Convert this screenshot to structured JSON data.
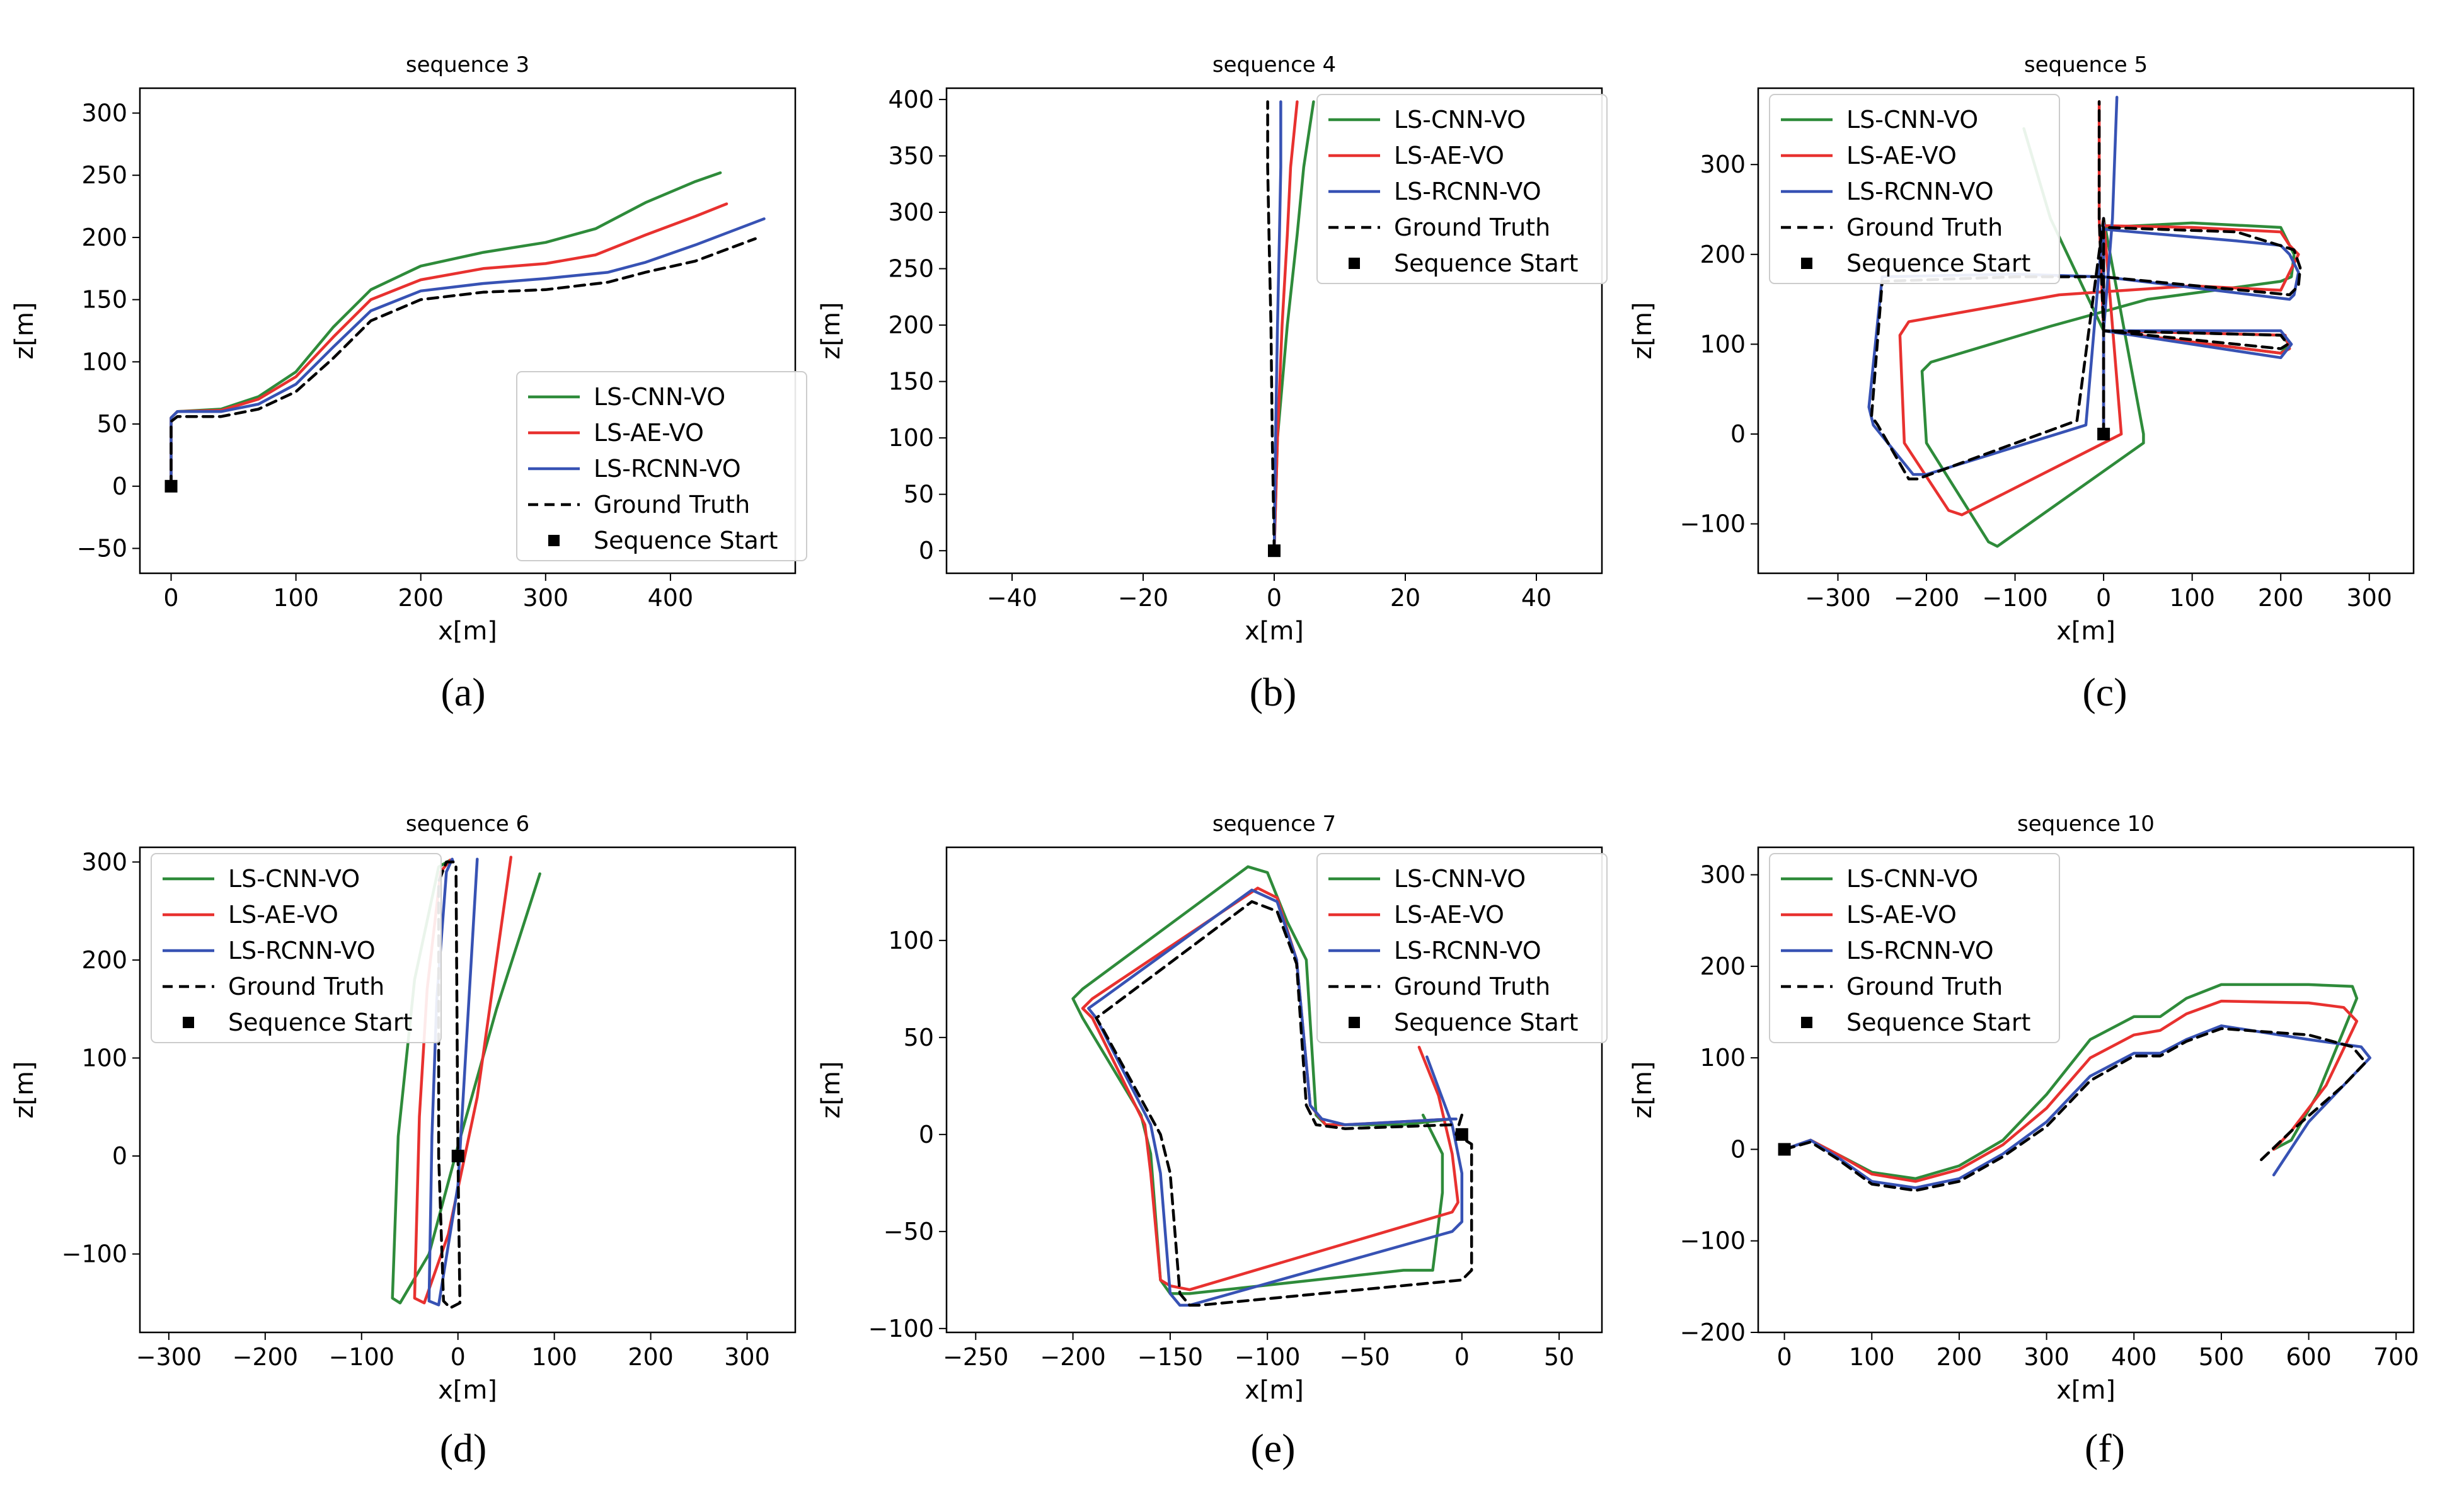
{
  "legend": [
    {
      "label": "LS-CNN-VO",
      "color": "#2e8b3a",
      "style": "solid"
    },
    {
      "label": "LS-AE-VO",
      "color": "#e8312f",
      "style": "solid"
    },
    {
      "label": "LS-RCNN-VO",
      "color": "#3752b4",
      "style": "solid"
    },
    {
      "label": "Ground Truth",
      "color": "#000000",
      "style": "dashed"
    },
    {
      "label": "Sequence Start",
      "color": "#000000",
      "style": "marker"
    }
  ],
  "chart_data": [
    {
      "type": "line",
      "title": "sequence 3",
      "caption": "(a)",
      "xlabel": "x[m]",
      "ylabel": "z[m]",
      "xlim": [
        -25,
        500
      ],
      "ylim": [
        -70,
        320
      ],
      "xticks": [
        0,
        100,
        200,
        300,
        400
      ],
      "yticks": [
        -50,
        0,
        50,
        100,
        150,
        200,
        250,
        300
      ],
      "legend_position": "lower right",
      "start": [
        0,
        0
      ],
      "series": [
        {
          "name": "LS-CNN-VO",
          "x": [
            0,
            0,
            5,
            40,
            70,
            100,
            130,
            160,
            200,
            250,
            300,
            340,
            380,
            420,
            440
          ],
          "y": [
            0,
            55,
            60,
            62,
            72,
            92,
            128,
            158,
            177,
            188,
            196,
            207,
            228,
            245,
            252
          ]
        },
        {
          "name": "LS-AE-VO",
          "x": [
            0,
            0,
            5,
            40,
            70,
            100,
            130,
            160,
            200,
            250,
            300,
            340,
            380,
            420,
            445
          ],
          "y": [
            0,
            55,
            60,
            61,
            70,
            88,
            120,
            150,
            166,
            175,
            179,
            186,
            202,
            217,
            227
          ]
        },
        {
          "name": "LS-RCNN-VO",
          "x": [
            0,
            0,
            5,
            40,
            70,
            100,
            130,
            160,
            200,
            250,
            300,
            350,
            380,
            420,
            475
          ],
          "y": [
            0,
            55,
            60,
            60,
            66,
            82,
            112,
            141,
            157,
            163,
            167,
            172,
            180,
            194,
            215
          ]
        },
        {
          "name": "Ground Truth",
          "x": [
            0,
            0,
            5,
            40,
            70,
            100,
            130,
            160,
            200,
            250,
            300,
            350,
            380,
            420,
            468
          ],
          "y": [
            0,
            52,
            56,
            56,
            62,
            76,
            103,
            133,
            150,
            156,
            158,
            164,
            172,
            181,
            199
          ]
        }
      ]
    },
    {
      "type": "line",
      "title": "sequence 4",
      "caption": "(b)",
      "xlabel": "x[m]",
      "ylabel": "z[m]",
      "xlim": [
        -50,
        50
      ],
      "ylim": [
        -20,
        410
      ],
      "xticks": [
        -40,
        -20,
        0,
        20,
        40
      ],
      "yticks": [
        0,
        50,
        100,
        150,
        200,
        250,
        300,
        350,
        400
      ],
      "legend_position": "upper right",
      "start": [
        0,
        0
      ],
      "series": [
        {
          "name": "LS-CNN-VO",
          "x": [
            0,
            0.5,
            2,
            3.5,
            4.5,
            6
          ],
          "y": [
            0,
            100,
            200,
            280,
            340,
            398
          ]
        },
        {
          "name": "LS-AE-VO",
          "x": [
            0,
            0.5,
            1.2,
            2,
            2.5,
            3.5
          ],
          "y": [
            0,
            100,
            200,
            280,
            340,
            398
          ]
        },
        {
          "name": "LS-RCNN-VO",
          "x": [
            0,
            0.2,
            0.5,
            0.8,
            1,
            1
          ],
          "y": [
            0,
            100,
            200,
            280,
            340,
            398
          ]
        },
        {
          "name": "Ground Truth",
          "x": [
            0,
            -0.3,
            -0.5,
            -0.8,
            -1,
            -1
          ],
          "y": [
            0,
            100,
            200,
            280,
            340,
            398
          ]
        }
      ]
    },
    {
      "type": "line",
      "title": "sequence 5",
      "caption": "(c)",
      "xlabel": "x[m]",
      "ylabel": "z[m]",
      "xlim": [
        -390,
        350
      ],
      "ylim": [
        -155,
        385
      ],
      "xticks": [
        -300,
        -200,
        -100,
        0,
        100,
        200,
        300
      ],
      "yticks": [
        -100,
        0,
        100,
        200,
        300
      ],
      "legend_position": "upper left",
      "start": [
        0,
        0
      ],
      "series": [
        {
          "name": "LS-CNN-VO",
          "x": [
            0,
            0,
            45,
            45,
            -120,
            -130,
            -200,
            -205,
            -195,
            -60,
            50,
            200,
            212,
            215,
            200,
            100,
            0,
            0,
            0,
            0,
            0,
            200,
            210,
            200,
            0,
            -60,
            -90
          ],
          "y": [
            0,
            240,
            0,
            -10,
            -125,
            -120,
            -10,
            70,
            80,
            120,
            150,
            170,
            175,
            200,
            230,
            235,
            230,
            200,
            115,
            115,
            115,
            90,
            100,
            110,
            115,
            240,
            340
          ]
        },
        {
          "name": "LS-AE-VO",
          "x": [
            0,
            0,
            20,
            -160,
            -175,
            -225,
            -230,
            -220,
            -50,
            100,
            200,
            210,
            220,
            210,
            200,
            100,
            0,
            0,
            0,
            0,
            200,
            210,
            205,
            0,
            -5,
            -5
          ],
          "y": [
            0,
            240,
            0,
            -90,
            -85,
            -10,
            110,
            125,
            155,
            165,
            160,
            180,
            200,
            210,
            225,
            230,
            232,
            200,
            115,
            115,
            90,
            95,
            110,
            115,
            240,
            370
          ]
        },
        {
          "name": "LS-RCNN-VO",
          "x": [
            0,
            0,
            -20,
            -200,
            -215,
            -260,
            -265,
            -250,
            -100,
            0,
            210,
            215,
            220,
            210,
            200,
            150,
            0,
            0,
            0,
            0,
            200,
            212,
            200,
            0,
            10,
            15
          ],
          "y": [
            0,
            240,
            10,
            -45,
            -45,
            10,
            30,
            175,
            178,
            175,
            150,
            155,
            180,
            200,
            210,
            215,
            228,
            200,
            115,
            115,
            85,
            100,
            115,
            115,
            240,
            375
          ]
        },
        {
          "name": "Ground Truth",
          "x": [
            0,
            0,
            -30,
            -210,
            -220,
            -255,
            -262,
            -250,
            -100,
            0,
            210,
            220,
            222,
            215,
            150,
            0,
            0,
            0,
            0,
            200,
            208,
            200,
            0,
            -5,
            -5
          ],
          "y": [
            0,
            240,
            15,
            -50,
            -50,
            10,
            20,
            170,
            175,
            175,
            155,
            165,
            185,
            205,
            225,
            230,
            200,
            115,
            115,
            95,
            100,
            110,
            115,
            240,
            370
          ]
        }
      ]
    },
    {
      "type": "line",
      "title": "sequence 6",
      "caption": "(d)",
      "xlabel": "x[m]",
      "ylabel": "z[m]",
      "xlim": [
        -330,
        350
      ],
      "ylim": [
        -180,
        315
      ],
      "xticks": [
        -300,
        -200,
        -100,
        0,
        100,
        200,
        300
      ],
      "yticks": [
        -100,
        0,
        100,
        200,
        300
      ],
      "legend_position": "upper left",
      "start": [
        0,
        0
      ],
      "series": [
        {
          "name": "LS-CNN-VO",
          "x": [
            -5,
            -8,
            -20,
            -45,
            -62,
            -68,
            -60,
            -30,
            0,
            40,
            85
          ],
          "y": [
            300,
            302,
            295,
            180,
            20,
            -145,
            -150,
            -100,
            10,
            150,
            288
          ]
        },
        {
          "name": "LS-AE-VO",
          "x": [
            -5,
            -8,
            -18,
            -32,
            -40,
            -45,
            -35,
            -10,
            20,
            55
          ],
          "y": [
            300,
            302,
            290,
            170,
            40,
            -145,
            -150,
            -80,
            60,
            305
          ]
        },
        {
          "name": "LS-RCNN-VO",
          "x": [
            -5,
            -6,
            -12,
            -22,
            -27,
            -30,
            -20,
            0,
            20
          ],
          "y": [
            300,
            303,
            290,
            160,
            20,
            -148,
            -152,
            -30,
            303
          ]
        },
        {
          "name": "Ground Truth",
          "x": [
            -5,
            -12,
            -20,
            -20,
            -15,
            -8,
            2,
            0,
            -2
          ],
          "y": [
            300,
            300,
            280,
            0,
            -148,
            -155,
            -150,
            0,
            295
          ]
        }
      ]
    },
    {
      "type": "line",
      "title": "sequence 7",
      "caption": "(e)",
      "xlabel": "x[m]",
      "ylabel": "z[m]",
      "xlim": [
        -265,
        72
      ],
      "ylim": [
        -102,
        148
      ],
      "xticks": [
        -250,
        -200,
        -150,
        -100,
        -50,
        0,
        50
      ],
      "yticks": [
        -100,
        -50,
        0,
        50,
        100
      ],
      "legend_position": "upper right",
      "start": [
        0,
        0
      ],
      "series": [
        {
          "name": "LS-CNN-VO",
          "x": [
            -20,
            -15,
            -10,
            -10,
            -15,
            -30,
            -140,
            -150,
            -155,
            -160,
            -165,
            -195,
            -200,
            -195,
            -110,
            -100,
            -90,
            -80,
            -75,
            -70,
            -30,
            -5,
            -3
          ],
          "y": [
            10,
            0,
            -10,
            -30,
            -70,
            -70,
            -82,
            -82,
            -75,
            -10,
            10,
            60,
            70,
            75,
            138,
            135,
            110,
            90,
            10,
            5,
            5,
            8,
            8
          ]
        },
        {
          "name": "LS-AE-VO",
          "x": [
            -22,
            -12,
            -5,
            -2,
            -5,
            -140,
            -150,
            -155,
            -160,
            -163,
            -190,
            -195,
            -190,
            -105,
            -95,
            -85,
            -78,
            -70,
            -60,
            -5,
            -3
          ],
          "y": [
            45,
            20,
            -10,
            -35,
            -40,
            -80,
            -78,
            -75,
            -20,
            5,
            60,
            65,
            70,
            127,
            122,
            90,
            15,
            5,
            5,
            8,
            8
          ]
        },
        {
          "name": "LS-RCNN-VO",
          "x": [
            -18,
            -5,
            0,
            0,
            -5,
            -140,
            -145,
            -150,
            -155,
            -160,
            -188,
            -192,
            -185,
            -108,
            -95,
            -85,
            -78,
            -72,
            -60,
            -5,
            -3
          ],
          "y": [
            40,
            5,
            -20,
            -45,
            -50,
            -88,
            -88,
            -82,
            -20,
            5,
            60,
            65,
            70,
            126,
            120,
            90,
            15,
            8,
            5,
            8,
            8
          ]
        },
        {
          "name": "Ground Truth",
          "x": [
            0,
            -3,
            5,
            5,
            0,
            -135,
            -140,
            -145,
            -150,
            -155,
            -185,
            -188,
            -180,
            -108,
            -95,
            -85,
            -80,
            -75,
            -60,
            -5,
            -3
          ],
          "y": [
            10,
            0,
            -5,
            -70,
            -75,
            -88,
            -88,
            -82,
            -20,
            0,
            55,
            60,
            66,
            120,
            115,
            88,
            15,
            5,
            3,
            5,
            5
          ]
        }
      ]
    },
    {
      "type": "line",
      "title": "sequence 10",
      "caption": "(f)",
      "xlabel": "x[m]",
      "ylabel": "z[m]",
      "xlim": [
        -30,
        720
      ],
      "ylim": [
        -200,
        330
      ],
      "xticks": [
        0,
        100,
        200,
        300,
        400,
        500,
        600,
        700
      ],
      "yticks": [
        -200,
        -100,
        0,
        100,
        200,
        300
      ],
      "legend_position": "upper left",
      "start": [
        0,
        0
      ],
      "series": [
        {
          "name": "LS-CNN-VO",
          "x": [
            0,
            30,
            60,
            100,
            150,
            200,
            250,
            300,
            350,
            400,
            430,
            460,
            500,
            600,
            650,
            655,
            640,
            610,
            580,
            560
          ],
          "y": [
            0,
            10,
            -5,
            -25,
            -32,
            -18,
            10,
            60,
            120,
            145,
            145,
            165,
            180,
            180,
            178,
            165,
            130,
            60,
            10,
            0
          ]
        },
        {
          "name": "LS-AE-VO",
          "x": [
            0,
            30,
            60,
            100,
            150,
            200,
            250,
            300,
            350,
            400,
            430,
            460,
            500,
            600,
            640,
            655,
            640,
            620,
            580,
            560
          ],
          "y": [
            0,
            10,
            -5,
            -27,
            -35,
            -22,
            5,
            45,
            100,
            125,
            130,
            148,
            162,
            160,
            155,
            140,
            110,
            70,
            20,
            0
          ]
        },
        {
          "name": "LS-RCNN-VO",
          "x": [
            0,
            30,
            60,
            100,
            150,
            200,
            250,
            300,
            350,
            400,
            430,
            460,
            500,
            600,
            660,
            670,
            650,
            600,
            560
          ],
          "y": [
            0,
            10,
            -8,
            -35,
            -42,
            -32,
            -5,
            30,
            80,
            105,
            105,
            120,
            135,
            120,
            112,
            100,
            80,
            30,
            -28
          ]
        },
        {
          "name": "Ground Truth",
          "x": [
            0,
            30,
            60,
            100,
            150,
            200,
            250,
            300,
            350,
            400,
            430,
            460,
            500,
            600,
            650,
            665,
            640,
            580,
            545
          ],
          "y": [
            0,
            8,
            -10,
            -38,
            -45,
            -35,
            -8,
            25,
            75,
            102,
            102,
            118,
            132,
            125,
            112,
            95,
            70,
            20,
            -12
          ]
        }
      ]
    }
  ]
}
